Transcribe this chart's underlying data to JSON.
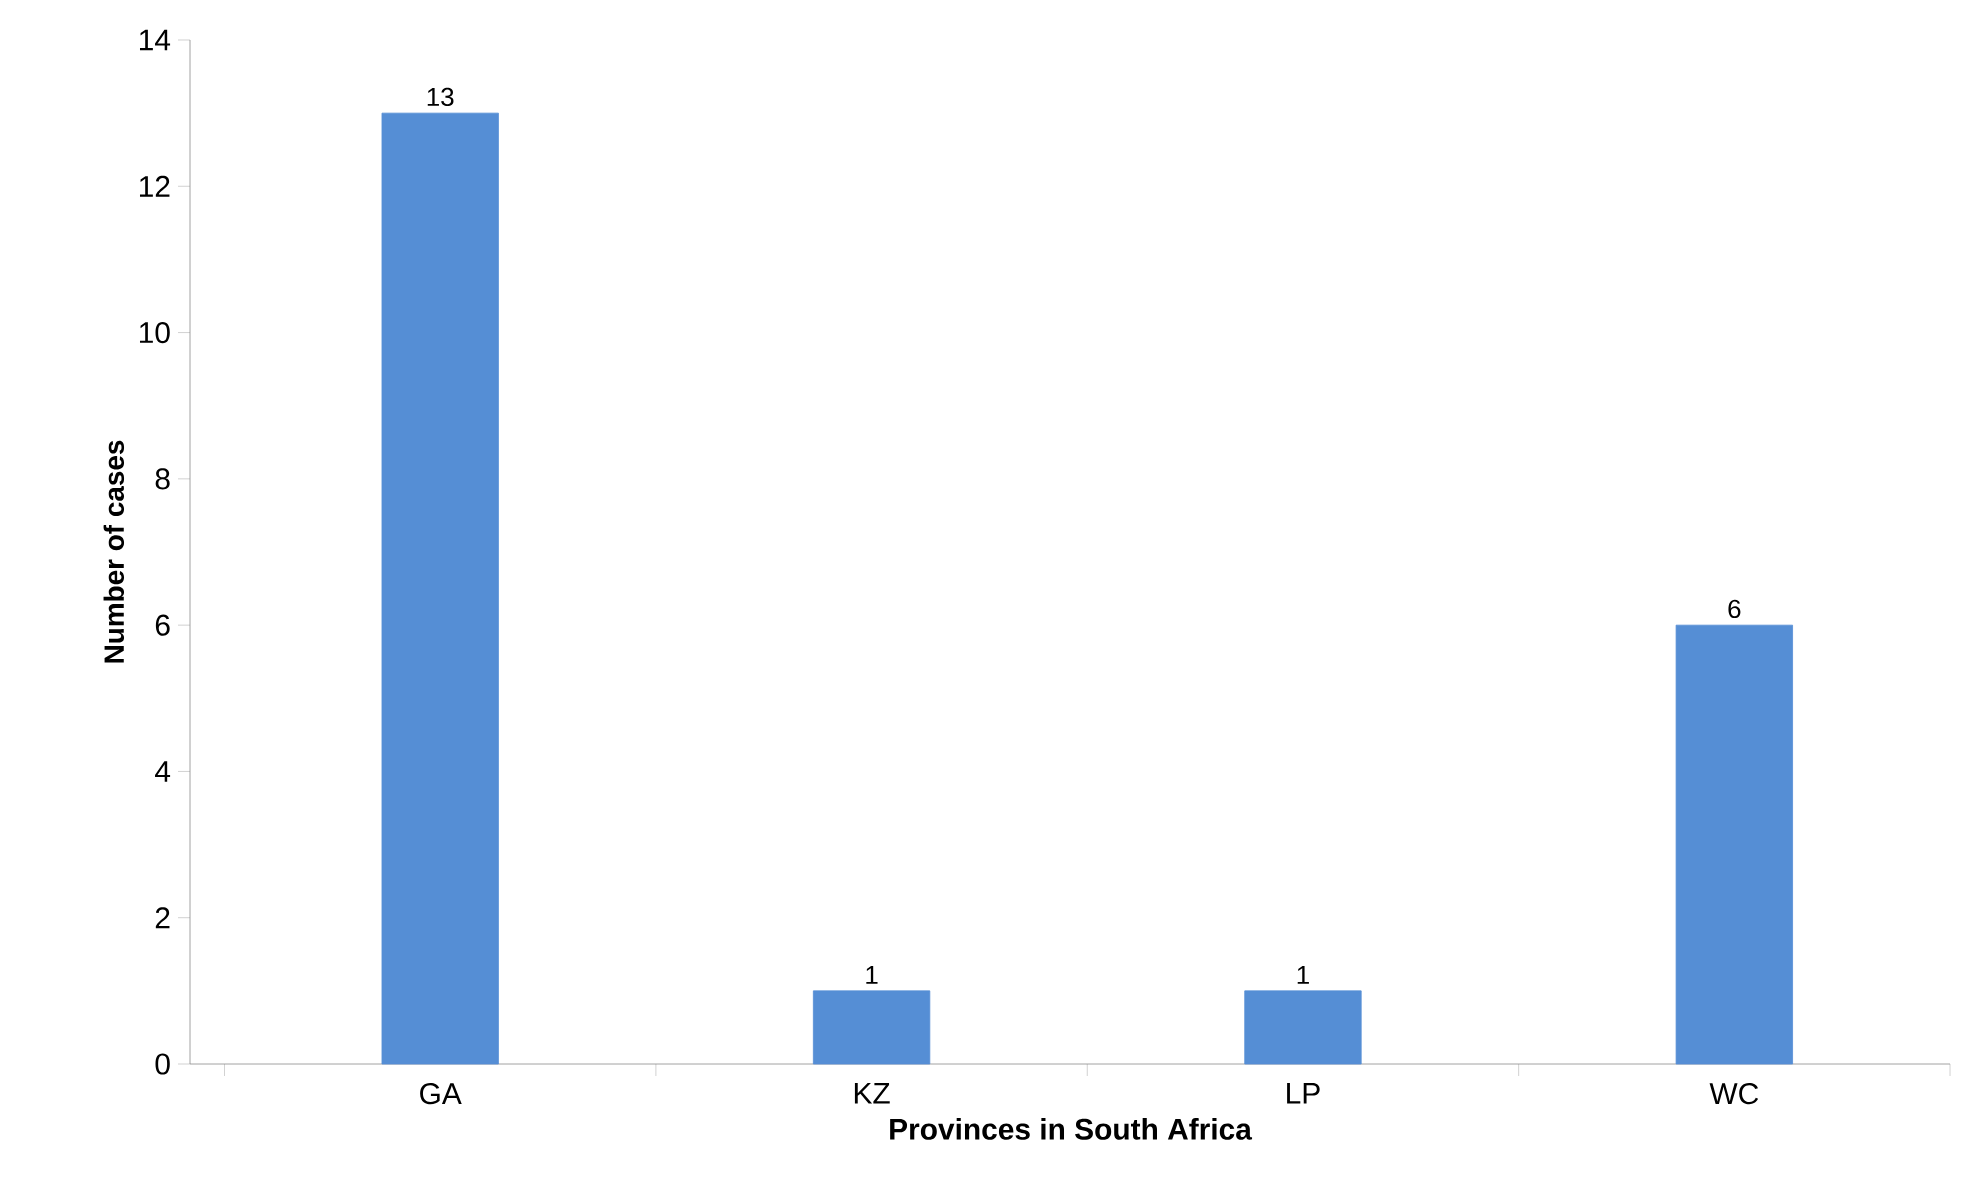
{
  "chart_data": {
    "type": "bar",
    "xlabel": "Provinces in South Africa",
    "ylabel": "Number of cases",
    "categories": [
      "GA",
      "KZ",
      "LP",
      "WC"
    ],
    "values": [
      13,
      1,
      1,
      6
    ],
    "color": "#558ed5",
    "ylim": [
      0,
      14
    ],
    "yticks": [
      0,
      2,
      4,
      6,
      8,
      10,
      12,
      14
    ],
    "data_labels": true
  }
}
